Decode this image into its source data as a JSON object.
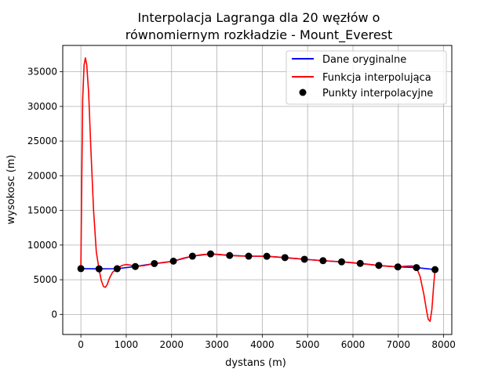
{
  "chart_data": {
    "type": "line",
    "title_line1": "Interpolacja Lagranga dla 20 węzłów o",
    "title_line2": "równomiernym rozkładzie - Mount_Everest",
    "xlabel": "dystans (m)",
    "ylabel": "wysokosc (m)",
    "xlim": [
      -400,
      8180
    ],
    "ylim": [
      -2900,
      38800
    ],
    "x_ticks": [
      0,
      1000,
      2000,
      3000,
      4000,
      5000,
      6000,
      7000,
      8000
    ],
    "x_tick_labels": [
      "0",
      "1000",
      "2000",
      "3000",
      "4000",
      "5000",
      "6000",
      "7000",
      "8000"
    ],
    "y_ticks": [
      0,
      5000,
      10000,
      15000,
      20000,
      25000,
      30000,
      35000
    ],
    "y_tick_labels": [
      "0",
      "5000",
      "10000",
      "15000",
      "20000",
      "25000",
      "30000",
      "35000"
    ],
    "grid": true,
    "legend_position": "top-right",
    "series": [
      {
        "name": "Dane oryginalne",
        "kind": "line",
        "color": "#0000ff",
        "x": [
          0,
          400,
          800,
          1200,
          1620,
          2040,
          2460,
          2860,
          3280,
          3700,
          4100,
          4500,
          4930,
          5340,
          5750,
          6160,
          6570,
          6990,
          7400,
          7810
        ],
        "y": [
          6600,
          6570,
          6590,
          6910,
          7330,
          7680,
          8400,
          8720,
          8500,
          8400,
          8380,
          8190,
          7950,
          7750,
          7580,
          7350,
          7060,
          6850,
          6750,
          6460
        ]
      },
      {
        "name": "Funkcja interpolująca",
        "kind": "line",
        "color": "#ff0000",
        "x": [
          0,
          20,
          40,
          70,
          100,
          130,
          170,
          220,
          280,
          340,
          400,
          450,
          500,
          540,
          580,
          630,
          700,
          800,
          900,
          1000,
          1100,
          1200,
          1400,
          1620,
          1800,
          2040,
          2250,
          2460,
          2650,
          2860,
          3050,
          3280,
          3500,
          3700,
          3900,
          4100,
          4300,
          4500,
          4700,
          4930,
          5150,
          5340,
          5550,
          5750,
          5950,
          6160,
          6350,
          6570,
          6800,
          6990,
          7150,
          7300,
          7400,
          7480,
          7560,
          7620,
          7660,
          7700,
          7740,
          7780,
          7810
        ],
        "y": [
          6600,
          20000,
          31000,
          36000,
          37000,
          36000,
          32000,
          24000,
          15000,
          9000,
          6570,
          4900,
          4000,
          3900,
          4300,
          5200,
          6100,
          6590,
          7050,
          7200,
          7100,
          6910,
          7050,
          7330,
          7450,
          7680,
          8100,
          8400,
          8600,
          8720,
          8650,
          8500,
          8420,
          8400,
          8390,
          8380,
          8300,
          8190,
          8080,
          7950,
          7840,
          7750,
          7670,
          7580,
          7480,
          7350,
          7220,
          7060,
          6920,
          6850,
          6950,
          7000,
          6750,
          5500,
          3000,
          700,
          -700,
          -1000,
          700,
          4200,
          6460
        ]
      },
      {
        "name": "Punkty interpolacyjne",
        "kind": "points",
        "color": "#000000",
        "x": [
          0,
          400,
          800,
          1200,
          1620,
          2040,
          2460,
          2860,
          3280,
          3700,
          4100,
          4500,
          4930,
          5340,
          5750,
          6160,
          6570,
          6990,
          7400,
          7810
        ],
        "y": [
          6600,
          6570,
          6590,
          6910,
          7330,
          7680,
          8400,
          8720,
          8500,
          8400,
          8380,
          8190,
          7950,
          7750,
          7580,
          7350,
          7060,
          6850,
          6750,
          6460
        ]
      }
    ]
  }
}
